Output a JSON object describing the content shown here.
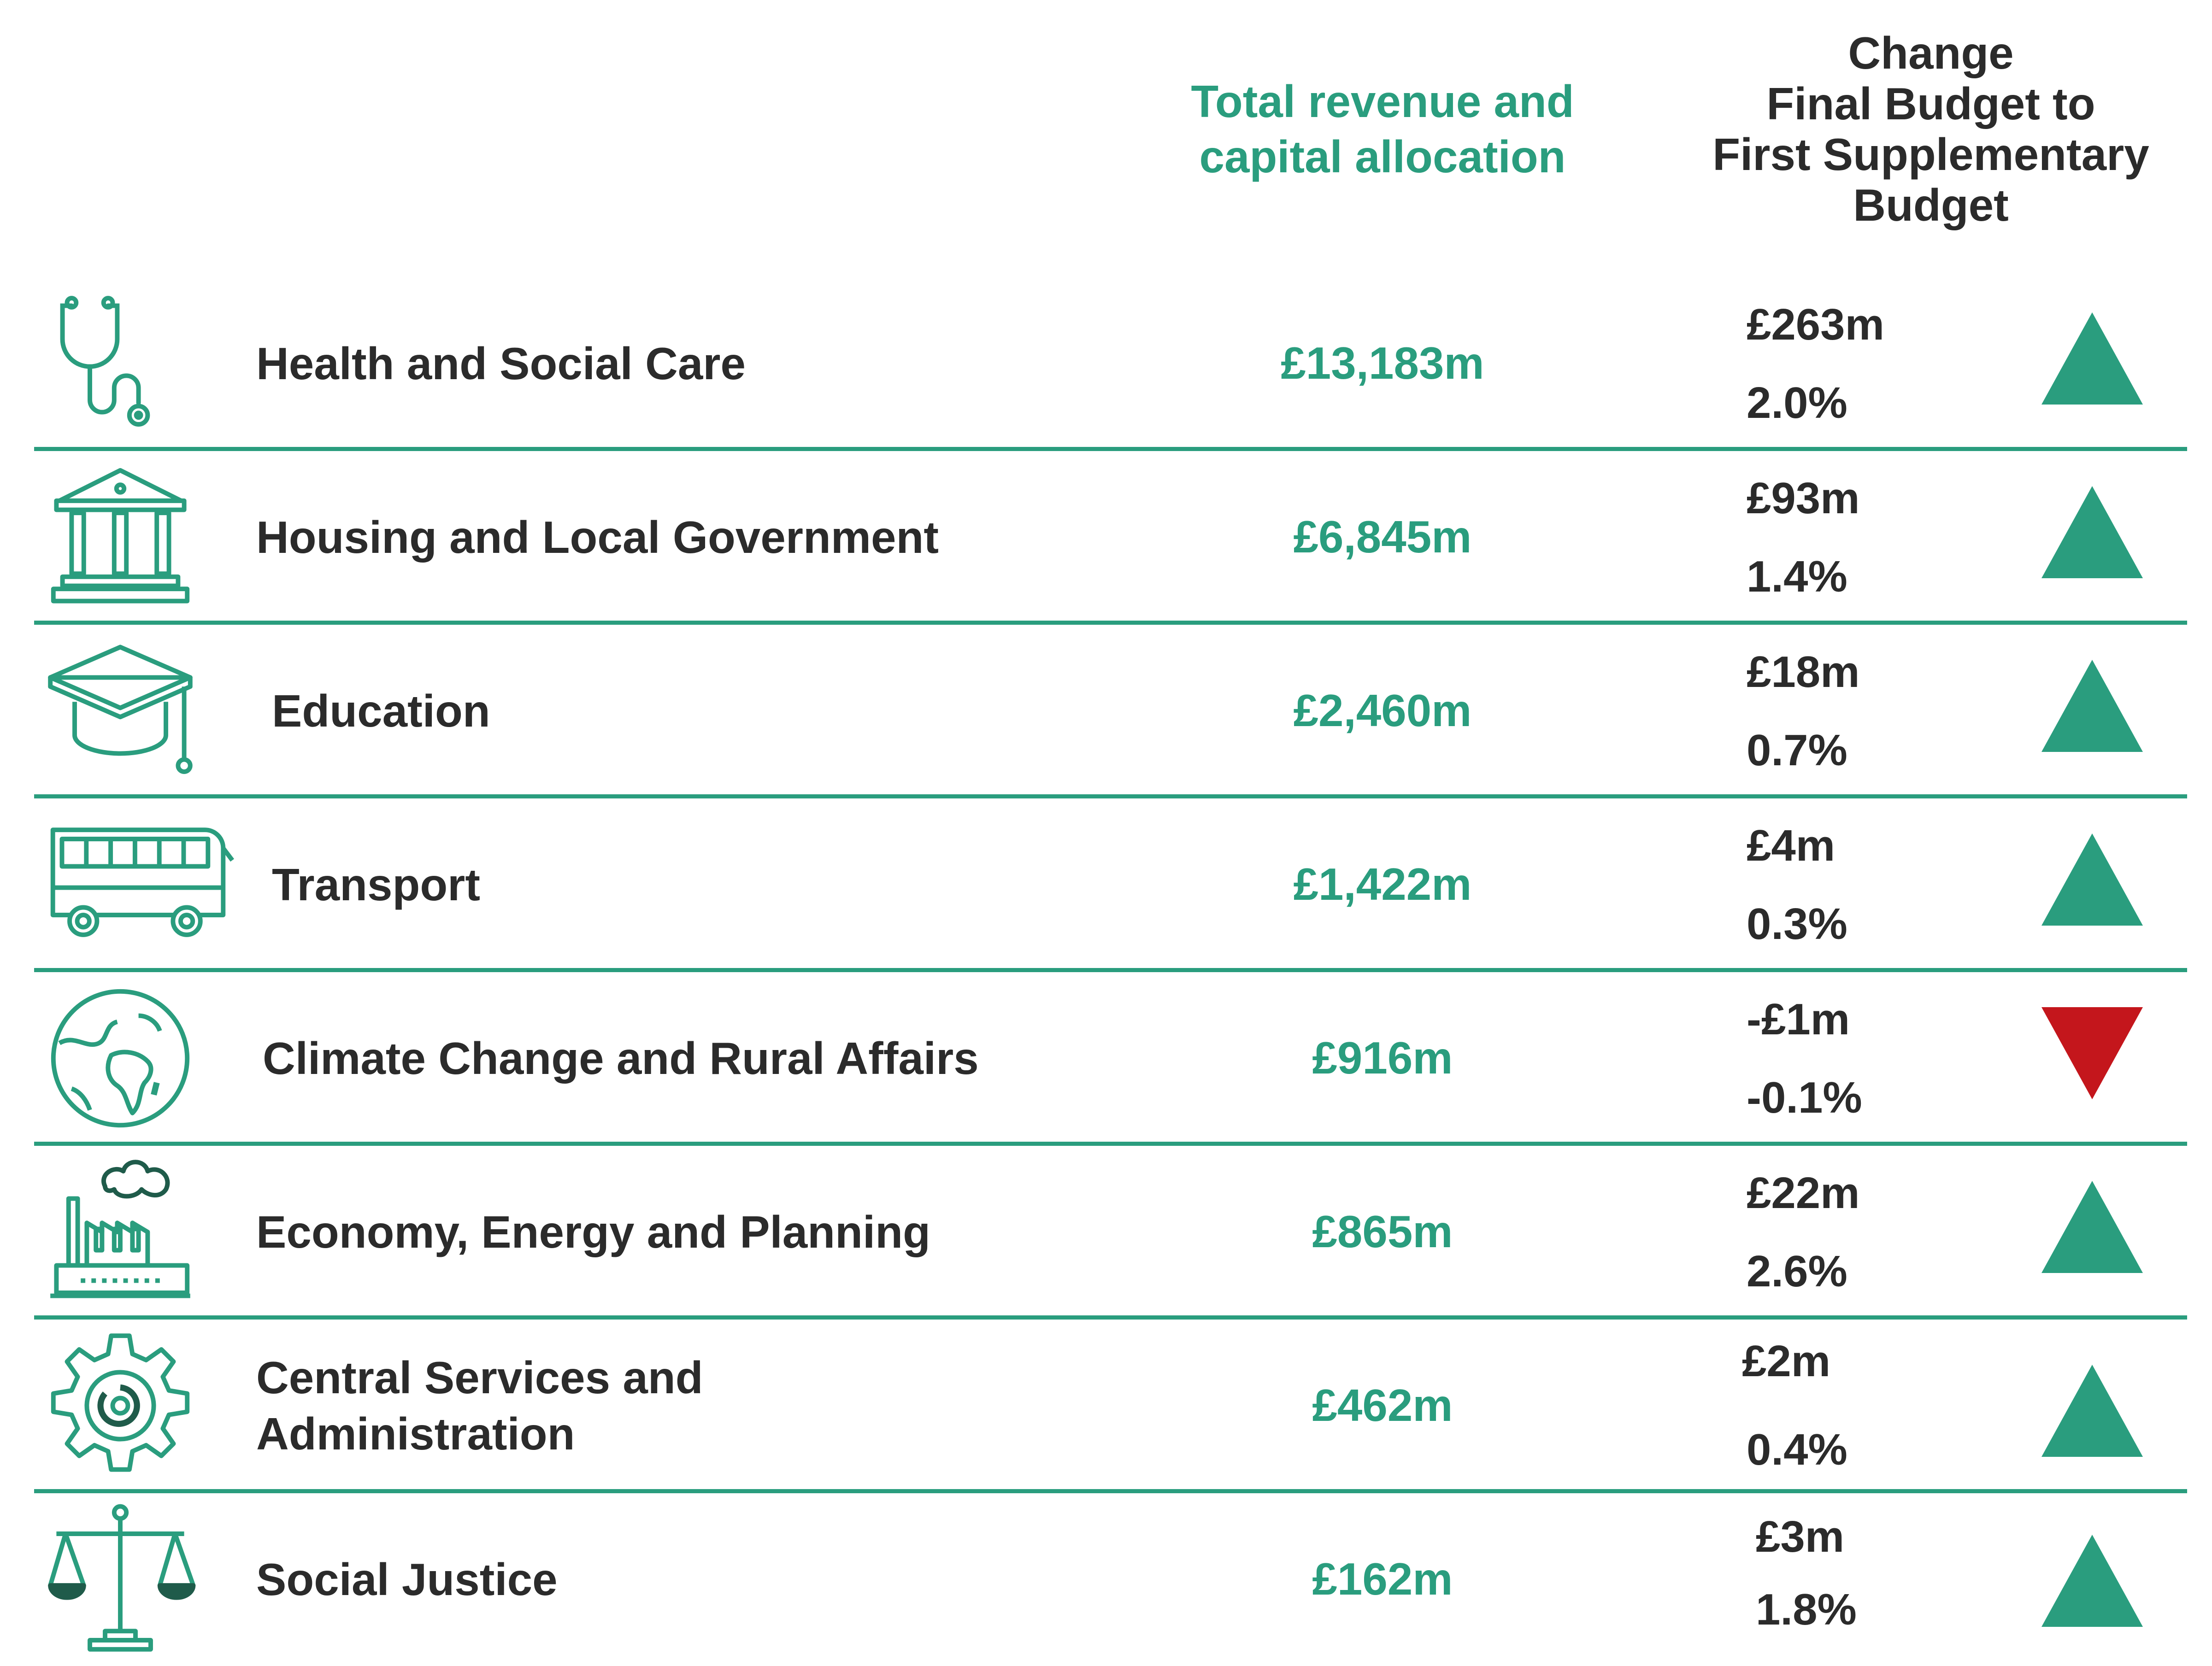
{
  "headers": {
    "total_line1": "Total revenue and",
    "total_line2": "capital allocation",
    "change_line1": "Change",
    "change_line2": "Final Budget to",
    "change_line3": "First Supplementary",
    "change_line4": "Budget"
  },
  "colors": {
    "accent": "#2a9d7e",
    "increase": "#2a9d7e",
    "decrease": "#c4161c",
    "text": "#2b2b2b"
  },
  "rows": [
    {
      "icon": "stethoscope-icon",
      "department": "Health and Social Care",
      "allocation": "£13,183m",
      "change_abs": "£263m",
      "change_pct": "2.0%",
      "direction": "up"
    },
    {
      "icon": "government-building-icon",
      "department": "Housing and Local Government",
      "allocation": "£6,845m",
      "change_abs": "£93m",
      "change_pct": "1.4%",
      "direction": "up"
    },
    {
      "icon": "graduation-cap-icon",
      "department": "Education",
      "allocation": "£2,460m",
      "change_abs": "£18m",
      "change_pct": "0.7%",
      "direction": "up"
    },
    {
      "icon": "bus-icon",
      "department": "Transport",
      "allocation": "£1,422m",
      "change_abs": "£4m",
      "change_pct": "0.3%",
      "direction": "up"
    },
    {
      "icon": "globe-icon",
      "department": "Climate Change and Rural Affairs",
      "allocation": "£916m",
      "change_abs": "-£1m",
      "change_pct": "-0.1%",
      "direction": "down"
    },
    {
      "icon": "factory-icon",
      "department": "Economy, Energy and Planning",
      "allocation": "£865m",
      "change_abs": "£22m",
      "change_pct": "2.6%",
      "direction": "up"
    },
    {
      "icon": "gear-icon",
      "department_line1": "Central Services and",
      "department_line2": "Administration",
      "allocation": "£462m",
      "change_abs": "£2m",
      "change_pct": "0.4%",
      "direction": "up"
    },
    {
      "icon": "scales-of-justice-icon",
      "department": "Social Justice",
      "allocation": "£162m",
      "change_abs": "£3m",
      "change_pct": "1.8%",
      "direction": "up"
    }
  ]
}
